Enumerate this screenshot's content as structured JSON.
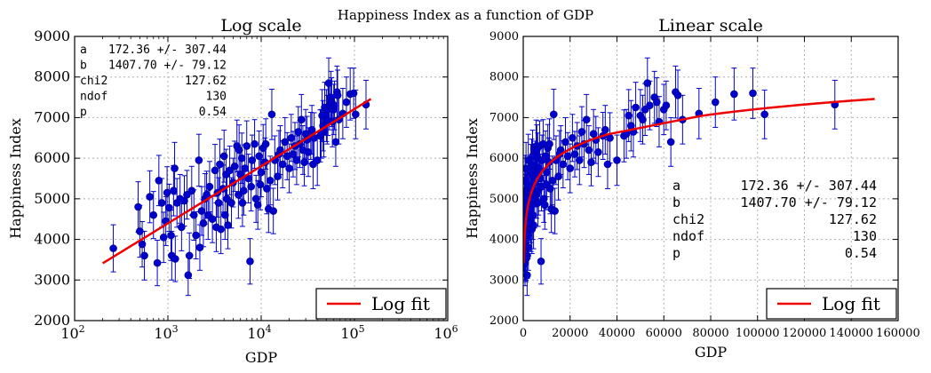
{
  "suptitle": "Happiness Index as a function of GDP",
  "colors": {
    "points": "#0000cc",
    "fit": "#ee0000",
    "grid": "#b0b0b0"
  },
  "fit_params": [
    {
      "name": "a",
      "value": "172.36 +/- 307.44"
    },
    {
      "name": "b",
      "value": "1407.70 +/- 79.12"
    },
    {
      "name": "chi2",
      "value": "127.62"
    },
    {
      "name": "ndof",
      "value": "130"
    },
    {
      "name": "p",
      "value": "0.54"
    }
  ],
  "chart_data": [
    {
      "type": "scatter",
      "title": "Log scale",
      "xlabel": "GDP",
      "ylabel": "Happiness Index",
      "xscale": "log",
      "xlim": [
        100,
        1000000
      ],
      "ylim": [
        2000,
        9000
      ],
      "x_ticks": [
        100,
        1000,
        10000,
        100000,
        1000000
      ],
      "x_tick_labels": [
        {
          "base": "10",
          "exp": "2"
        },
        {
          "base": "10",
          "exp": "3"
        },
        {
          "base": "10",
          "exp": "4"
        },
        {
          "base": "10",
          "exp": "5"
        },
        {
          "base": "10",
          "exp": "6"
        }
      ],
      "y_ticks": [
        2000,
        3000,
        4000,
        5000,
        6000,
        7000,
        8000,
        9000
      ],
      "y_tick_labels": [
        "2000",
        "3000",
        "4000",
        "5000",
        "6000",
        "7000",
        "8000",
        "9000"
      ],
      "grid": true,
      "legend": {
        "placement": "lower-right",
        "entries": [
          "Log fit"
        ]
      },
      "fit_curve": {
        "formula": "a + b*log10(x)",
        "a": 172.36,
        "b": 1407.7,
        "x_range": [
          200,
          150000
        ]
      },
      "stats_box_placement": "top-left"
    },
    {
      "type": "scatter",
      "title": "Linear scale",
      "xlabel": "GDP",
      "ylabel": "Happiness Index",
      "xscale": "linear",
      "xlim": [
        0,
        160000
      ],
      "ylim": [
        2000,
        9000
      ],
      "x_ticks": [
        0,
        20000,
        40000,
        60000,
        80000,
        100000,
        120000,
        140000,
        160000
      ],
      "x_tick_labels": [
        "0",
        "20000",
        "40000",
        "60000",
        "80000",
        "100000",
        "120000",
        "140000",
        "160000"
      ],
      "y_ticks": [
        2000,
        3000,
        4000,
        5000,
        6000,
        7000,
        8000,
        9000
      ],
      "y_tick_labels": [
        "2000",
        "3000",
        "4000",
        "5000",
        "6000",
        "7000",
        "8000",
        "9000"
      ],
      "grid": true,
      "legend": {
        "placement": "lower-right",
        "entries": [
          "Log fit"
        ]
      },
      "fit_curve": {
        "formula": "a + b*log10(x)",
        "a": 172.36,
        "b": 1407.7,
        "x_range": [
          200,
          150000
        ]
      },
      "stats_box_placement": "center-right"
    }
  ],
  "points": [
    {
      "x": 260,
      "y": 3780,
      "e": 580
    },
    {
      "x": 480,
      "y": 4800,
      "e": 620
    },
    {
      "x": 500,
      "y": 4200,
      "e": 640
    },
    {
      "x": 530,
      "y": 3880,
      "e": 560
    },
    {
      "x": 560,
      "y": 3600,
      "e": 600
    },
    {
      "x": 640,
      "y": 5050,
      "e": 640
    },
    {
      "x": 700,
      "y": 4600,
      "e": 580
    },
    {
      "x": 770,
      "y": 3420,
      "e": 560
    },
    {
      "x": 800,
      "y": 5450,
      "e": 620
    },
    {
      "x": 860,
      "y": 4900,
      "e": 600
    },
    {
      "x": 900,
      "y": 4050,
      "e": 620
    },
    {
      "x": 950,
      "y": 4450,
      "e": 600
    },
    {
      "x": 980,
      "y": 5150,
      "e": 640
    },
    {
      "x": 1030,
      "y": 4780,
      "e": 580
    },
    {
      "x": 1080,
      "y": 4100,
      "e": 620
    },
    {
      "x": 1100,
      "y": 3600,
      "e": 600
    },
    {
      "x": 1150,
      "y": 5200,
      "e": 620
    },
    {
      "x": 1180,
      "y": 5750,
      "e": 640
    },
    {
      "x": 1200,
      "y": 3520,
      "e": 560
    },
    {
      "x": 1250,
      "y": 4900,
      "e": 600
    },
    {
      "x": 1400,
      "y": 4300,
      "e": 580
    },
    {
      "x": 1500,
      "y": 4950,
      "e": 620
    },
    {
      "x": 1600,
      "y": 5100,
      "e": 600
    },
    {
      "x": 1650,
      "y": 3120,
      "e": 500
    },
    {
      "x": 1700,
      "y": 3600,
      "e": 560
    },
    {
      "x": 1800,
      "y": 5200,
      "e": 600
    },
    {
      "x": 1900,
      "y": 4600,
      "e": 620
    },
    {
      "x": 2000,
      "y": 4100,
      "e": 580
    },
    {
      "x": 2150,
      "y": 5950,
      "e": 640
    },
    {
      "x": 2200,
      "y": 3800,
      "e": 560
    },
    {
      "x": 2300,
      "y": 4700,
      "e": 600
    },
    {
      "x": 2500,
      "y": 5000,
      "e": 620
    },
    {
      "x": 2600,
      "y": 5100,
      "e": 580
    },
    {
      "x": 2700,
      "y": 4600,
      "e": 600
    },
    {
      "x": 2800,
      "y": 5300,
      "e": 620
    },
    {
      "x": 3000,
      "y": 4500,
      "e": 580
    },
    {
      "x": 3200,
      "y": 5700,
      "e": 640
    },
    {
      "x": 3300,
      "y": 4300,
      "e": 600
    },
    {
      "x": 3500,
      "y": 4900,
      "e": 620
    },
    {
      "x": 3600,
      "y": 5850,
      "e": 620
    },
    {
      "x": 3700,
      "y": 4250,
      "e": 600
    },
    {
      "x": 3900,
      "y": 5250,
      "e": 580
    },
    {
      "x": 4000,
      "y": 6050,
      "e": 640
    },
    {
      "x": 4100,
      "y": 4600,
      "e": 600
    },
    {
      "x": 4200,
      "y": 5600,
      "e": 620
    },
    {
      "x": 4400,
      "y": 4350,
      "e": 580
    },
    {
      "x": 4600,
      "y": 5700,
      "e": 600
    },
    {
      "x": 4800,
      "y": 4900,
      "e": 620
    },
    {
      "x": 5000,
      "y": 5400,
      "e": 600
    },
    {
      "x": 5200,
      "y": 5800,
      "e": 620
    },
    {
      "x": 5500,
      "y": 6300,
      "e": 640
    },
    {
      "x": 5700,
      "y": 5100,
      "e": 580
    },
    {
      "x": 6000,
      "y": 5600,
      "e": 600
    },
    {
      "x": 6200,
      "y": 6000,
      "e": 620
    },
    {
      "x": 6500,
      "y": 5200,
      "e": 600
    },
    {
      "x": 6700,
      "y": 5750,
      "e": 580
    },
    {
      "x": 7000,
      "y": 6300,
      "e": 620
    },
    {
      "x": 7300,
      "y": 5500,
      "e": 600
    },
    {
      "x": 7600,
      "y": 3460,
      "e": 560
    },
    {
      "x": 8000,
      "y": 5950,
      "e": 620
    },
    {
      "x": 8500,
      "y": 6350,
      "e": 600
    },
    {
      "x": 8800,
      "y": 5000,
      "e": 580
    },
    {
      "x": 9200,
      "y": 4850,
      "e": 600
    },
    {
      "x": 9500,
      "y": 6050,
      "e": 620
    },
    {
      "x": 10000,
      "y": 5650,
      "e": 600
    },
    {
      "x": 10500,
      "y": 6250,
      "e": 580
    },
    {
      "x": 11000,
      "y": 5900,
      "e": 600
    },
    {
      "x": 11500,
      "y": 5250,
      "e": 620
    },
    {
      "x": 12000,
      "y": 4750,
      "e": 580
    },
    {
      "x": 12500,
      "y": 5450,
      "e": 600
    },
    {
      "x": 13000,
      "y": 7080,
      "e": 620
    },
    {
      "x": 13500,
      "y": 4700,
      "e": 560
    },
    {
      "x": 14000,
      "y": 5950,
      "e": 600
    },
    {
      "x": 15000,
      "y": 5550,
      "e": 580
    },
    {
      "x": 16000,
      "y": 6200,
      "e": 600
    },
    {
      "x": 17000,
      "y": 5850,
      "e": 580
    },
    {
      "x": 18000,
      "y": 6400,
      "e": 600
    },
    {
      "x": 19000,
      "y": 6050,
      "e": 580
    },
    {
      "x": 20000,
      "y": 5750,
      "e": 600
    },
    {
      "x": 21000,
      "y": 6500,
      "e": 580
    },
    {
      "x": 22000,
      "y": 6100,
      "e": 560
    },
    {
      "x": 23000,
      "y": 6300,
      "e": 580
    },
    {
      "x": 24000,
      "y": 5950,
      "e": 600
    },
    {
      "x": 25000,
      "y": 6650,
      "e": 620
    },
    {
      "x": 26000,
      "y": 6350,
      "e": 580
    },
    {
      "x": 27000,
      "y": 6950,
      "e": 620
    },
    {
      "x": 28000,
      "y": 6200,
      "e": 600
    },
    {
      "x": 29000,
      "y": 5900,
      "e": 580
    },
    {
      "x": 30000,
      "y": 6600,
      "e": 600
    },
    {
      "x": 31000,
      "y": 6450,
      "e": 580
    },
    {
      "x": 32000,
      "y": 6150,
      "e": 600
    },
    {
      "x": 34000,
      "y": 6550,
      "e": 580
    },
    {
      "x": 36000,
      "y": 5850,
      "e": 600
    },
    {
      "x": 37000,
      "y": 6500,
      "e": 620
    },
    {
      "x": 40000,
      "y": 5950,
      "e": 620
    },
    {
      "x": 43000,
      "y": 6550,
      "e": 640
    },
    {
      "x": 45000,
      "y": 7050,
      "e": 640
    },
    {
      "x": 47000,
      "y": 6650,
      "e": 620
    },
    {
      "x": 48000,
      "y": 7250,
      "e": 620
    },
    {
      "x": 50000,
      "y": 7050,
      "e": 640
    },
    {
      "x": 51000,
      "y": 6950,
      "e": 600
    },
    {
      "x": 52000,
      "y": 7200,
      "e": 640
    },
    {
      "x": 53000,
      "y": 7850,
      "e": 620
    },
    {
      "x": 54000,
      "y": 7300,
      "e": 600
    },
    {
      "x": 56000,
      "y": 7500,
      "e": 640
    },
    {
      "x": 57000,
      "y": 7380,
      "e": 600
    },
    {
      "x": 60000,
      "y": 7200,
      "e": 620
    },
    {
      "x": 63000,
      "y": 6400,
      "e": 600
    },
    {
      "x": 65000,
      "y": 7630,
      "e": 640
    },
    {
      "x": 66000,
      "y": 7550,
      "e": 620
    },
    {
      "x": 68000,
      "y": 6950,
      "e": 600
    },
    {
      "x": 82000,
      "y": 7380,
      "e": 620
    },
    {
      "x": 90000,
      "y": 7580,
      "e": 640
    },
    {
      "x": 98000,
      "y": 7600,
      "e": 620
    },
    {
      "x": 103000,
      "y": 7080,
      "e": 600
    },
    {
      "x": 133000,
      "y": 7320,
      "e": 600
    },
    {
      "x": 3400,
      "y": 5150,
      "e": 600
    },
    {
      "x": 5800,
      "y": 6200,
      "e": 620
    },
    {
      "x": 7800,
      "y": 5300,
      "e": 600
    },
    {
      "x": 9800,
      "y": 5350,
      "e": 620
    },
    {
      "x": 1350,
      "y": 5000,
      "e": 600
    },
    {
      "x": 2400,
      "y": 4400,
      "e": 580
    },
    {
      "x": 4300,
      "y": 5000,
      "e": 620
    },
    {
      "x": 6300,
      "y": 4900,
      "e": 580
    },
    {
      "x": 11200,
      "y": 6350,
      "e": 620
    },
    {
      "x": 15500,
      "y": 6100,
      "e": 580
    },
    {
      "x": 35000,
      "y": 6700,
      "e": 600
    },
    {
      "x": 44000,
      "y": 6600,
      "e": 600
    },
    {
      "x": 46000,
      "y": 6800,
      "e": 620
    },
    {
      "x": 58000,
      "y": 6900,
      "e": 620
    },
    {
      "x": 75000,
      "y": 7100,
      "e": 620
    },
    {
      "x": 61000,
      "y": 7300,
      "e": 600
    }
  ]
}
